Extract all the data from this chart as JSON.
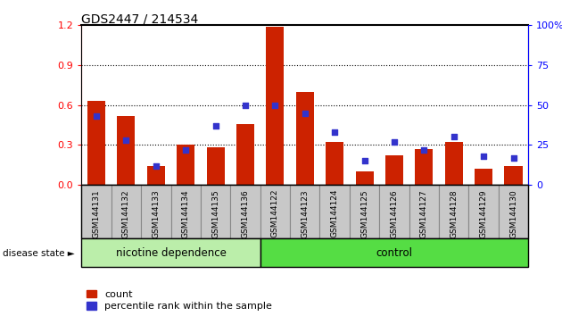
{
  "title": "GDS2447 / 214534",
  "samples": [
    "GSM144131",
    "GSM144132",
    "GSM144133",
    "GSM144134",
    "GSM144135",
    "GSM144136",
    "GSM144122",
    "GSM144123",
    "GSM144124",
    "GSM144125",
    "GSM144126",
    "GSM144127",
    "GSM144128",
    "GSM144129",
    "GSM144130"
  ],
  "count_values": [
    0.63,
    0.52,
    0.14,
    0.3,
    0.28,
    0.46,
    1.19,
    0.7,
    0.32,
    0.1,
    0.22,
    0.27,
    0.32,
    0.12,
    0.14
  ],
  "percentile_values": [
    43,
    28,
    12,
    22,
    37,
    50,
    50,
    45,
    33,
    15,
    27,
    22,
    30,
    18,
    17
  ],
  "bar_color": "#cc2200",
  "dot_color": "#3333cc",
  "ylim_left": [
    0,
    1.2
  ],
  "ylim_right": [
    0,
    100
  ],
  "yticks_left": [
    0,
    0.3,
    0.6,
    0.9,
    1.2
  ],
  "yticks_right": [
    0,
    25,
    50,
    75,
    100
  ],
  "group1_label": "nicotine dependence",
  "group2_label": "control",
  "group1_count": 6,
  "group2_count": 9,
  "disease_label": "disease state",
  "legend_count": "count",
  "legend_percentile": "percentile rank within the sample",
  "tick_label_area_color": "#c8c8c8",
  "group1_bg": "#bbeeaa",
  "group2_bg": "#55dd44"
}
